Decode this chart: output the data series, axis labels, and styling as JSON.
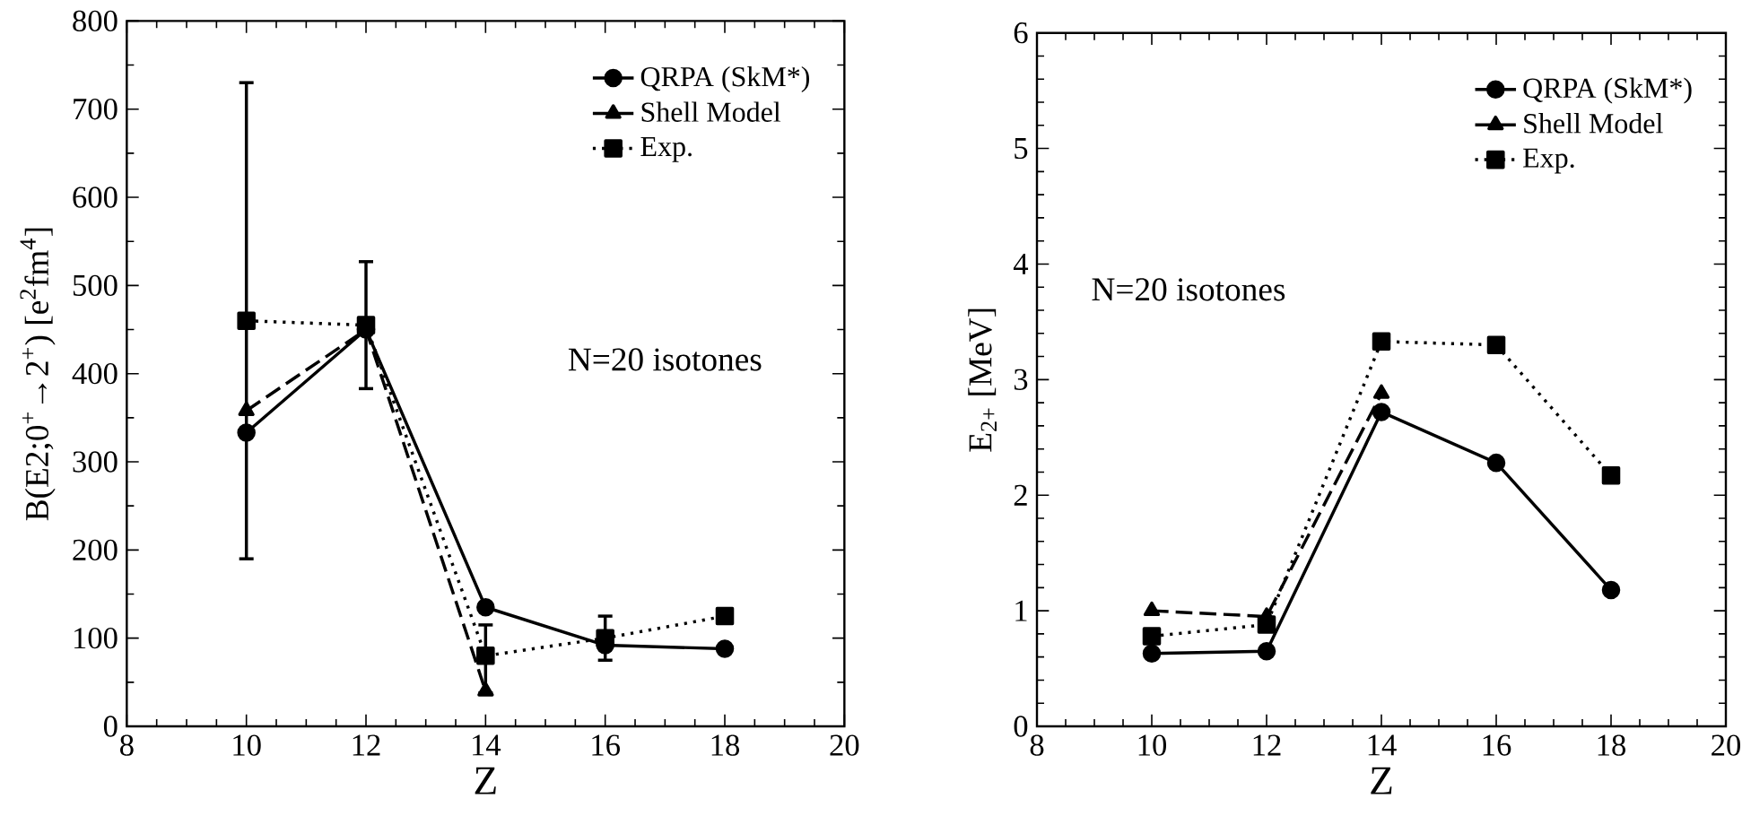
{
  "chart_data": [
    {
      "type": "line",
      "xlabel": "Z",
      "ylabel": "B(E2;0$^{+}$→2$^{+}$)  [e$^{2}$fm$^{4}$]",
      "x": [
        10,
        12,
        14,
        16,
        18
      ],
      "xlim": [
        8,
        20
      ],
      "xticks": [
        8,
        10,
        12,
        14,
        16,
        18,
        20
      ],
      "ylim": [
        0,
        800
      ],
      "yticks": [
        0,
        100,
        200,
        300,
        400,
        500,
        600,
        700,
        800
      ],
      "legend": "top right",
      "annotations": [
        "N=20 isotones"
      ],
      "series": [
        {
          "name": "QRPA  (SkM*)",
          "color": "#000000",
          "marker": "circle",
          "line_style": "solid",
          "values": [
            333,
            450,
            135,
            92,
            88
          ]
        },
        {
          "name": "Shell Model",
          "color": "#000000",
          "marker": "triangle",
          "line_style": "dashed",
          "values": [
            358,
            450,
            40,
            null,
            null
          ]
        },
        {
          "name": "Exp.",
          "color": "#000000",
          "marker": "square",
          "line_style": "dotted",
          "values": [
            460,
            455,
            80,
            100,
            125
          ],
          "errors": [
            [
              190,
              730
            ],
            [
              383,
              527
            ],
            [
              38,
              115
            ],
            [
              75,
              125
            ],
            [
              117,
              133
            ]
          ]
        }
      ]
    },
    {
      "type": "line",
      "xlabel": "Z",
      "ylabel": "E$_{2+}$  [MeV]",
      "x": [
        10,
        12,
        14,
        16,
        18
      ],
      "xlim": [
        8,
        20
      ],
      "xticks": [
        8,
        10,
        12,
        14,
        16,
        18,
        20
      ],
      "ylim": [
        0,
        6
      ],
      "yticks": [
        0,
        1,
        2,
        3,
        4,
        5,
        6
      ],
      "legend": "top right",
      "annotations": [
        "N=20 isotones"
      ],
      "series": [
        {
          "name": "QRPA  (SkM*)",
          "color": "#000000",
          "marker": "circle",
          "line_style": "solid",
          "values": [
            0.63,
            0.65,
            2.72,
            2.28,
            1.18
          ]
        },
        {
          "name": "Shell Model",
          "color": "#000000",
          "marker": "triangle",
          "line_style": "dashed",
          "values": [
            1.0,
            0.95,
            2.88,
            null,
            null
          ]
        },
        {
          "name": "Exp.",
          "color": "#000000",
          "marker": "square",
          "line_style": "dotted",
          "values": [
            0.78,
            0.88,
            3.33,
            3.3,
            2.17
          ]
        }
      ]
    }
  ]
}
